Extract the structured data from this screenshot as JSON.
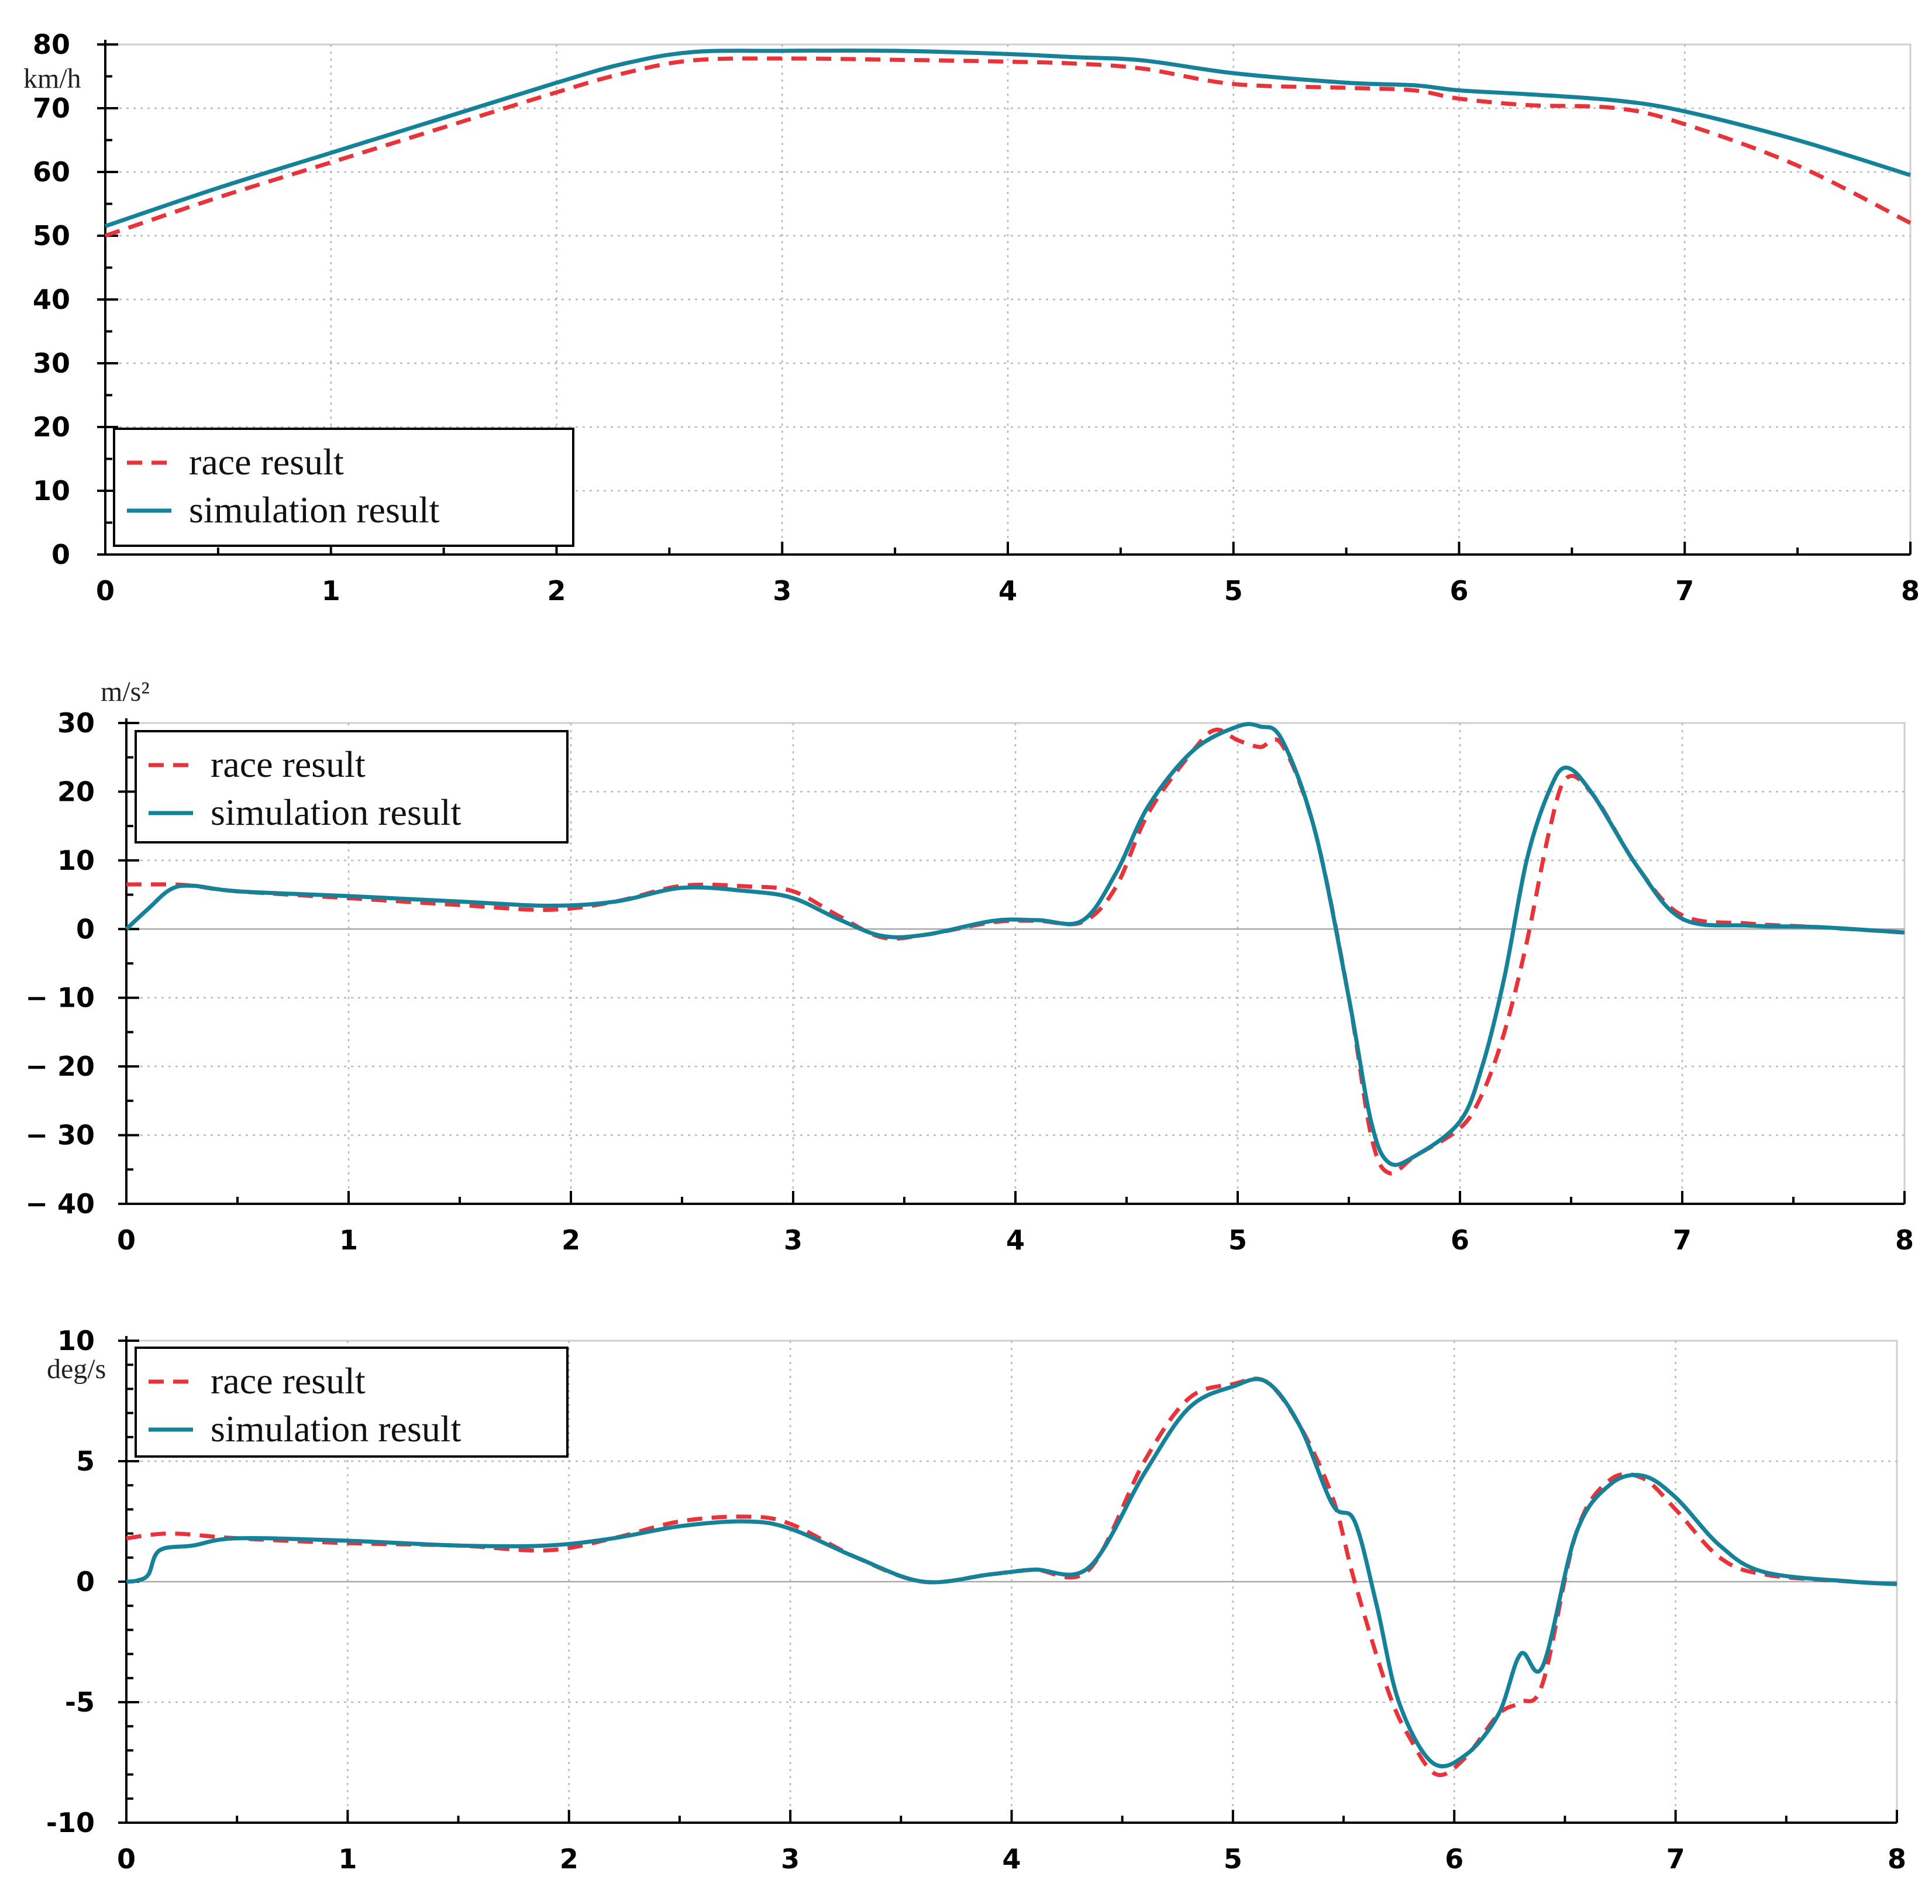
{
  "chart_data": [
    {
      "type": "line",
      "title": "",
      "xlabel": "",
      "ylabel": "km/h",
      "xlim": [
        0,
        8
      ],
      "ylim": [
        0,
        80
      ],
      "xticks": [
        "0",
        "1",
        "2",
        "3",
        "4",
        "5",
        "6",
        "7",
        "8"
      ],
      "yticks": [
        "0",
        "10",
        "20",
        "30",
        "40",
        "50",
        "60",
        "70",
        "80"
      ],
      "legend": {
        "position": "bottom-left",
        "entries": [
          "race result",
          "simulation result"
        ]
      },
      "series": [
        {
          "name": "race result",
          "style": "dashed",
          "color": "#e8333a",
          "x": [
            0,
            0.5,
            1,
            1.5,
            2,
            2.3,
            2.6,
            3,
            3.5,
            4,
            4.3,
            4.6,
            5,
            5.5,
            5.8,
            6,
            6.3,
            6.7,
            7,
            7.5,
            8
          ],
          "y": [
            50,
            56,
            61.5,
            67,
            72.5,
            75.5,
            77.5,
            77.8,
            77.6,
            77.3,
            77,
            76.2,
            73.8,
            73.2,
            72.8,
            71.5,
            70.5,
            70,
            67.5,
            61,
            52
          ]
        },
        {
          "name": "simulation result",
          "style": "solid",
          "color": "#16829a",
          "x": [
            0,
            0.5,
            1,
            1.5,
            2,
            2.3,
            2.6,
            3,
            3.5,
            4,
            4.3,
            4.6,
            5,
            5.5,
            5.8,
            6,
            6.3,
            6.7,
            7,
            7.5,
            8
          ],
          "y": [
            51.5,
            57.5,
            63,
            68.5,
            74,
            77,
            78.8,
            79,
            79,
            78.5,
            78,
            77.5,
            75.5,
            74,
            73.6,
            72.8,
            72.2,
            71.2,
            69.5,
            65,
            59.5
          ]
        }
      ]
    },
    {
      "type": "line",
      "title": "",
      "xlabel": "",
      "ylabel": "m/s²",
      "xlim": [
        0,
        8
      ],
      "ylim": [
        -40,
        30
      ],
      "xticks": [
        "0",
        "1",
        "2",
        "3",
        "4",
        "5",
        "6",
        "7",
        "8"
      ],
      "yticks": [
        "30",
        "20",
        "10",
        "0",
        "− 10",
        "− 20",
        "− 30",
        "− 40"
      ],
      "legend": {
        "position": "top-left",
        "entries": [
          "race result",
          "simulation result"
        ]
      },
      "series": [
        {
          "name": "race result",
          "style": "dashed",
          "color": "#e8333a",
          "x": [
            0,
            0.2,
            0.3,
            0.5,
            1,
            1.5,
            1.9,
            2.2,
            2.5,
            2.8,
            3.0,
            3.2,
            3.4,
            3.6,
            3.9,
            4.1,
            4.3,
            4.45,
            4.6,
            4.8,
            4.9,
            5.0,
            5.1,
            5.2,
            5.35,
            5.5,
            5.6,
            5.68,
            5.8,
            6.0,
            6.1,
            6.2,
            6.3,
            6.4,
            6.48,
            6.6,
            6.8,
            7.0,
            7.3,
            7.6,
            8.0
          ],
          "y": [
            6.5,
            6.5,
            6.3,
            5.5,
            4.5,
            3.5,
            2.8,
            4,
            6.3,
            6.2,
            5.5,
            2,
            -1.2,
            -0.8,
            1,
            1.2,
            1,
            6,
            17,
            26,
            29,
            27.5,
            26.5,
            26.8,
            14,
            -10,
            -30,
            -35.5,
            -33,
            -29,
            -24,
            -15,
            -2,
            14,
            22,
            19.5,
            9,
            2,
            0.8,
            0.3,
            -0.5
          ]
        },
        {
          "name": "simulation result",
          "style": "solid",
          "color": "#16829a",
          "x": [
            0,
            0.1,
            0.2,
            0.3,
            0.5,
            1,
            1.5,
            1.9,
            2.2,
            2.5,
            2.8,
            3.0,
            3.2,
            3.4,
            3.6,
            3.9,
            4.1,
            4.3,
            4.45,
            4.6,
            4.8,
            5.0,
            5.1,
            5.2,
            5.35,
            5.5,
            5.6,
            5.68,
            5.8,
            6.0,
            6.1,
            6.2,
            6.3,
            6.4,
            6.48,
            6.6,
            6.8,
            7.0,
            7.3,
            7.6,
            8.0
          ],
          "y": [
            0,
            3,
            5.8,
            6.3,
            5.5,
            4.8,
            4,
            3.4,
            4,
            6,
            5.5,
            4.5,
            1.5,
            -1,
            -0.8,
            1.2,
            1.3,
            1.2,
            8,
            18,
            26,
            29.5,
            29.5,
            27.5,
            14,
            -10,
            -28,
            -34,
            -33,
            -28,
            -20,
            -7,
            10,
            20,
            23.5,
            19.5,
            9,
            1.5,
            0.5,
            0.3,
            -0.5
          ]
        }
      ]
    },
    {
      "type": "line",
      "title": "",
      "xlabel": "",
      "ylabel": "deg/s",
      "xlim": [
        0,
        8
      ],
      "ylim": [
        -10,
        10
      ],
      "xticks": [
        "0",
        "1",
        "2",
        "3",
        "4",
        "5",
        "6",
        "7",
        "8"
      ],
      "yticks": [
        "10",
        "5",
        "0",
        "-5",
        "-10"
      ],
      "legend": {
        "position": "top-left",
        "entries": [
          "race result",
          "simulation result"
        ]
      },
      "series": [
        {
          "name": "race result",
          "style": "dashed",
          "color": "#e8333a",
          "x": [
            0,
            0.2,
            0.5,
            1,
            1.5,
            1.9,
            2.2,
            2.5,
            2.8,
            3.0,
            3.3,
            3.6,
            3.9,
            4.1,
            4.35,
            4.6,
            4.8,
            5.0,
            5.15,
            5.3,
            5.45,
            5.55,
            5.7,
            5.8,
            5.92,
            6.05,
            6.2,
            6.3,
            6.4,
            6.55,
            6.7,
            6.85,
            7.0,
            7.2,
            7.4,
            7.8,
            8.0
          ],
          "y": [
            1.8,
            2,
            1.8,
            1.6,
            1.5,
            1.3,
            1.8,
            2.5,
            2.7,
            2.4,
            1,
            0,
            0.3,
            0.5,
            0.5,
            5,
            7.6,
            8.2,
            8.3,
            6.5,
            3.5,
            0,
            -4.5,
            -6.5,
            -8,
            -7.3,
            -5.5,
            -5,
            -4.2,
            2,
            4.2,
            4.3,
            3,
            1,
            0.3,
            0,
            -0.1
          ]
        },
        {
          "name": "simulation result",
          "style": "solid",
          "color": "#16829a",
          "x": [
            0,
            0.05,
            0.1,
            0.15,
            0.3,
            0.5,
            1,
            1.5,
            1.9,
            2.2,
            2.5,
            2.8,
            3.0,
            3.3,
            3.6,
            3.9,
            4.1,
            4.35,
            4.6,
            4.8,
            5.0,
            5.15,
            5.3,
            5.45,
            5.55,
            5.65,
            5.75,
            5.9,
            6.05,
            6.2,
            6.3,
            6.4,
            6.55,
            6.7,
            6.85,
            7.0,
            7.2,
            7.4,
            7.8,
            8.0
          ],
          "y": [
            0,
            0.05,
            0.3,
            1.3,
            1.5,
            1.8,
            1.7,
            1.5,
            1.5,
            1.8,
            2.3,
            2.5,
            2.2,
            1,
            0,
            0.3,
            0.5,
            0.6,
            4.5,
            7.2,
            8.1,
            8.3,
            6.5,
            3.2,
            2.5,
            -1,
            -5,
            -7.5,
            -7.2,
            -5.5,
            -3,
            -3.5,
            2,
            4,
            4.4,
            3.5,
            1.5,
            0.4,
            0,
            -0.1
          ]
        }
      ]
    }
  ]
}
